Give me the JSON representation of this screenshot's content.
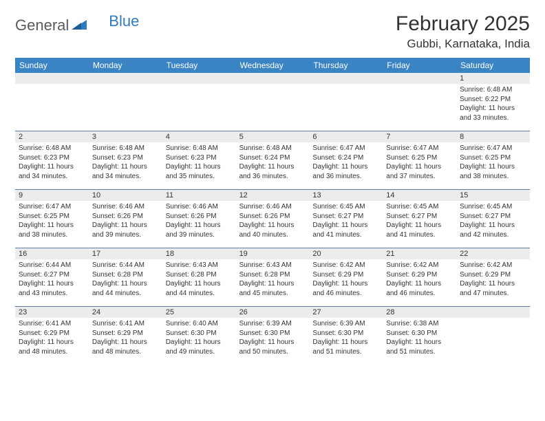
{
  "logo": {
    "text1": "General",
    "text2": "Blue"
  },
  "title": "February 2025",
  "location": "Gubbi, Karnataka, India",
  "colors": {
    "header_bg": "#3b84c4",
    "daynum_bg": "#ececec",
    "week_border": "#5e7a99",
    "logo_gray": "#5a5a5a",
    "logo_blue": "#2f7bbf",
    "text": "#333333"
  },
  "weekdays": [
    "Sunday",
    "Monday",
    "Tuesday",
    "Wednesday",
    "Thursday",
    "Friday",
    "Saturday"
  ],
  "weeks": [
    [
      {
        "n": "",
        "sr": "",
        "ss": "",
        "dl": ""
      },
      {
        "n": "",
        "sr": "",
        "ss": "",
        "dl": ""
      },
      {
        "n": "",
        "sr": "",
        "ss": "",
        "dl": ""
      },
      {
        "n": "",
        "sr": "",
        "ss": "",
        "dl": ""
      },
      {
        "n": "",
        "sr": "",
        "ss": "",
        "dl": ""
      },
      {
        "n": "",
        "sr": "",
        "ss": "",
        "dl": ""
      },
      {
        "n": "1",
        "sr": "6:48 AM",
        "ss": "6:22 PM",
        "dl": "11 hours and 33 minutes."
      }
    ],
    [
      {
        "n": "2",
        "sr": "6:48 AM",
        "ss": "6:23 PM",
        "dl": "11 hours and 34 minutes."
      },
      {
        "n": "3",
        "sr": "6:48 AM",
        "ss": "6:23 PM",
        "dl": "11 hours and 34 minutes."
      },
      {
        "n": "4",
        "sr": "6:48 AM",
        "ss": "6:23 PM",
        "dl": "11 hours and 35 minutes."
      },
      {
        "n": "5",
        "sr": "6:48 AM",
        "ss": "6:24 PM",
        "dl": "11 hours and 36 minutes."
      },
      {
        "n": "6",
        "sr": "6:47 AM",
        "ss": "6:24 PM",
        "dl": "11 hours and 36 minutes."
      },
      {
        "n": "7",
        "sr": "6:47 AM",
        "ss": "6:25 PM",
        "dl": "11 hours and 37 minutes."
      },
      {
        "n": "8",
        "sr": "6:47 AM",
        "ss": "6:25 PM",
        "dl": "11 hours and 38 minutes."
      }
    ],
    [
      {
        "n": "9",
        "sr": "6:47 AM",
        "ss": "6:25 PM",
        "dl": "11 hours and 38 minutes."
      },
      {
        "n": "10",
        "sr": "6:46 AM",
        "ss": "6:26 PM",
        "dl": "11 hours and 39 minutes."
      },
      {
        "n": "11",
        "sr": "6:46 AM",
        "ss": "6:26 PM",
        "dl": "11 hours and 39 minutes."
      },
      {
        "n": "12",
        "sr": "6:46 AM",
        "ss": "6:26 PM",
        "dl": "11 hours and 40 minutes."
      },
      {
        "n": "13",
        "sr": "6:45 AM",
        "ss": "6:27 PM",
        "dl": "11 hours and 41 minutes."
      },
      {
        "n": "14",
        "sr": "6:45 AM",
        "ss": "6:27 PM",
        "dl": "11 hours and 41 minutes."
      },
      {
        "n": "15",
        "sr": "6:45 AM",
        "ss": "6:27 PM",
        "dl": "11 hours and 42 minutes."
      }
    ],
    [
      {
        "n": "16",
        "sr": "6:44 AM",
        "ss": "6:27 PM",
        "dl": "11 hours and 43 minutes."
      },
      {
        "n": "17",
        "sr": "6:44 AM",
        "ss": "6:28 PM",
        "dl": "11 hours and 44 minutes."
      },
      {
        "n": "18",
        "sr": "6:43 AM",
        "ss": "6:28 PM",
        "dl": "11 hours and 44 minutes."
      },
      {
        "n": "19",
        "sr": "6:43 AM",
        "ss": "6:28 PM",
        "dl": "11 hours and 45 minutes."
      },
      {
        "n": "20",
        "sr": "6:42 AM",
        "ss": "6:29 PM",
        "dl": "11 hours and 46 minutes."
      },
      {
        "n": "21",
        "sr": "6:42 AM",
        "ss": "6:29 PM",
        "dl": "11 hours and 46 minutes."
      },
      {
        "n": "22",
        "sr": "6:42 AM",
        "ss": "6:29 PM",
        "dl": "11 hours and 47 minutes."
      }
    ],
    [
      {
        "n": "23",
        "sr": "6:41 AM",
        "ss": "6:29 PM",
        "dl": "11 hours and 48 minutes."
      },
      {
        "n": "24",
        "sr": "6:41 AM",
        "ss": "6:29 PM",
        "dl": "11 hours and 48 minutes."
      },
      {
        "n": "25",
        "sr": "6:40 AM",
        "ss": "6:30 PM",
        "dl": "11 hours and 49 minutes."
      },
      {
        "n": "26",
        "sr": "6:39 AM",
        "ss": "6:30 PM",
        "dl": "11 hours and 50 minutes."
      },
      {
        "n": "27",
        "sr": "6:39 AM",
        "ss": "6:30 PM",
        "dl": "11 hours and 51 minutes."
      },
      {
        "n": "28",
        "sr": "6:38 AM",
        "ss": "6:30 PM",
        "dl": "11 hours and 51 minutes."
      },
      {
        "n": "",
        "sr": "",
        "ss": "",
        "dl": ""
      }
    ]
  ],
  "labels": {
    "sunrise": "Sunrise:",
    "sunset": "Sunset:",
    "daylight": "Daylight:"
  }
}
